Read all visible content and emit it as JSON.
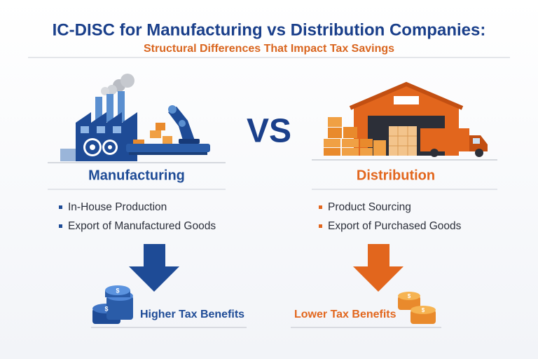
{
  "header": {
    "title": "IC-DISC for Manufacturing vs Distribution Companies:",
    "subtitle": "Structural Differences That Impact Tax Savings"
  },
  "vs": "VS",
  "left": {
    "heading": "Manufacturing",
    "bullets": [
      "In-House Production",
      "Export of Manufactured Goods"
    ],
    "result": "Higher Tax Benefits"
  },
  "right": {
    "heading": "Distribution",
    "bullets": [
      "Product Sourcing",
      "Export of Purchased Goods"
    ],
    "result": "Lower Tax Benefits"
  }
}
